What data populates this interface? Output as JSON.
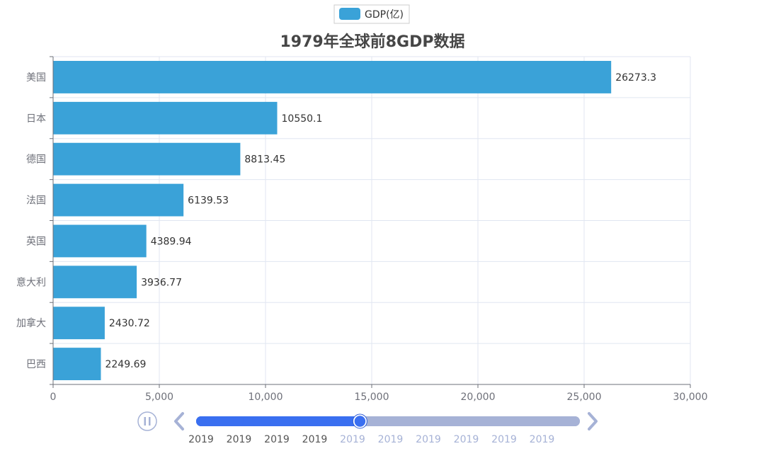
{
  "chart_data": {
    "type": "bar",
    "orientation": "horizontal",
    "title": "1979年全球前8GDP数据",
    "legend": {
      "label": "GDP(亿)",
      "position": "top-center"
    },
    "categories": [
      "美国",
      "日本",
      "德国",
      "法国",
      "英国",
      "意大利",
      "加拿大",
      "巴西"
    ],
    "series": [
      {
        "name": "GDP(亿)",
        "values": [
          26273.3,
          10550.1,
          8813.45,
          6139.53,
          4389.94,
          3936.77,
          2430.72,
          2249.69
        ]
      }
    ],
    "xlim": [
      0,
      30000
    ],
    "xticks": [
      0,
      5000,
      10000,
      15000,
      20000,
      25000,
      30000
    ],
    "xtick_labels": [
      "0",
      "5,000",
      "10,000",
      "15,000",
      "20,000",
      "25,000",
      "30,000"
    ],
    "grid": true,
    "colors": {
      "bar": "#3aa2d8",
      "grid": "#e0e6f1",
      "axis": "#6e7079",
      "label": "#333333"
    }
  },
  "timeline": {
    "labels": [
      "2019",
      "2019",
      "2019",
      "2019",
      "2019",
      "2019",
      "2019",
      "2019",
      "2019",
      "2019"
    ],
    "total_points": 41,
    "current_index": 17,
    "play_button": "pause-icon",
    "prev_button": "chevron-left-icon",
    "next_button": "chevron-right-icon",
    "colors": {
      "active": "#3a6ff0",
      "inactive": "#a6b2d6",
      "control": "#a6b2d6"
    }
  }
}
